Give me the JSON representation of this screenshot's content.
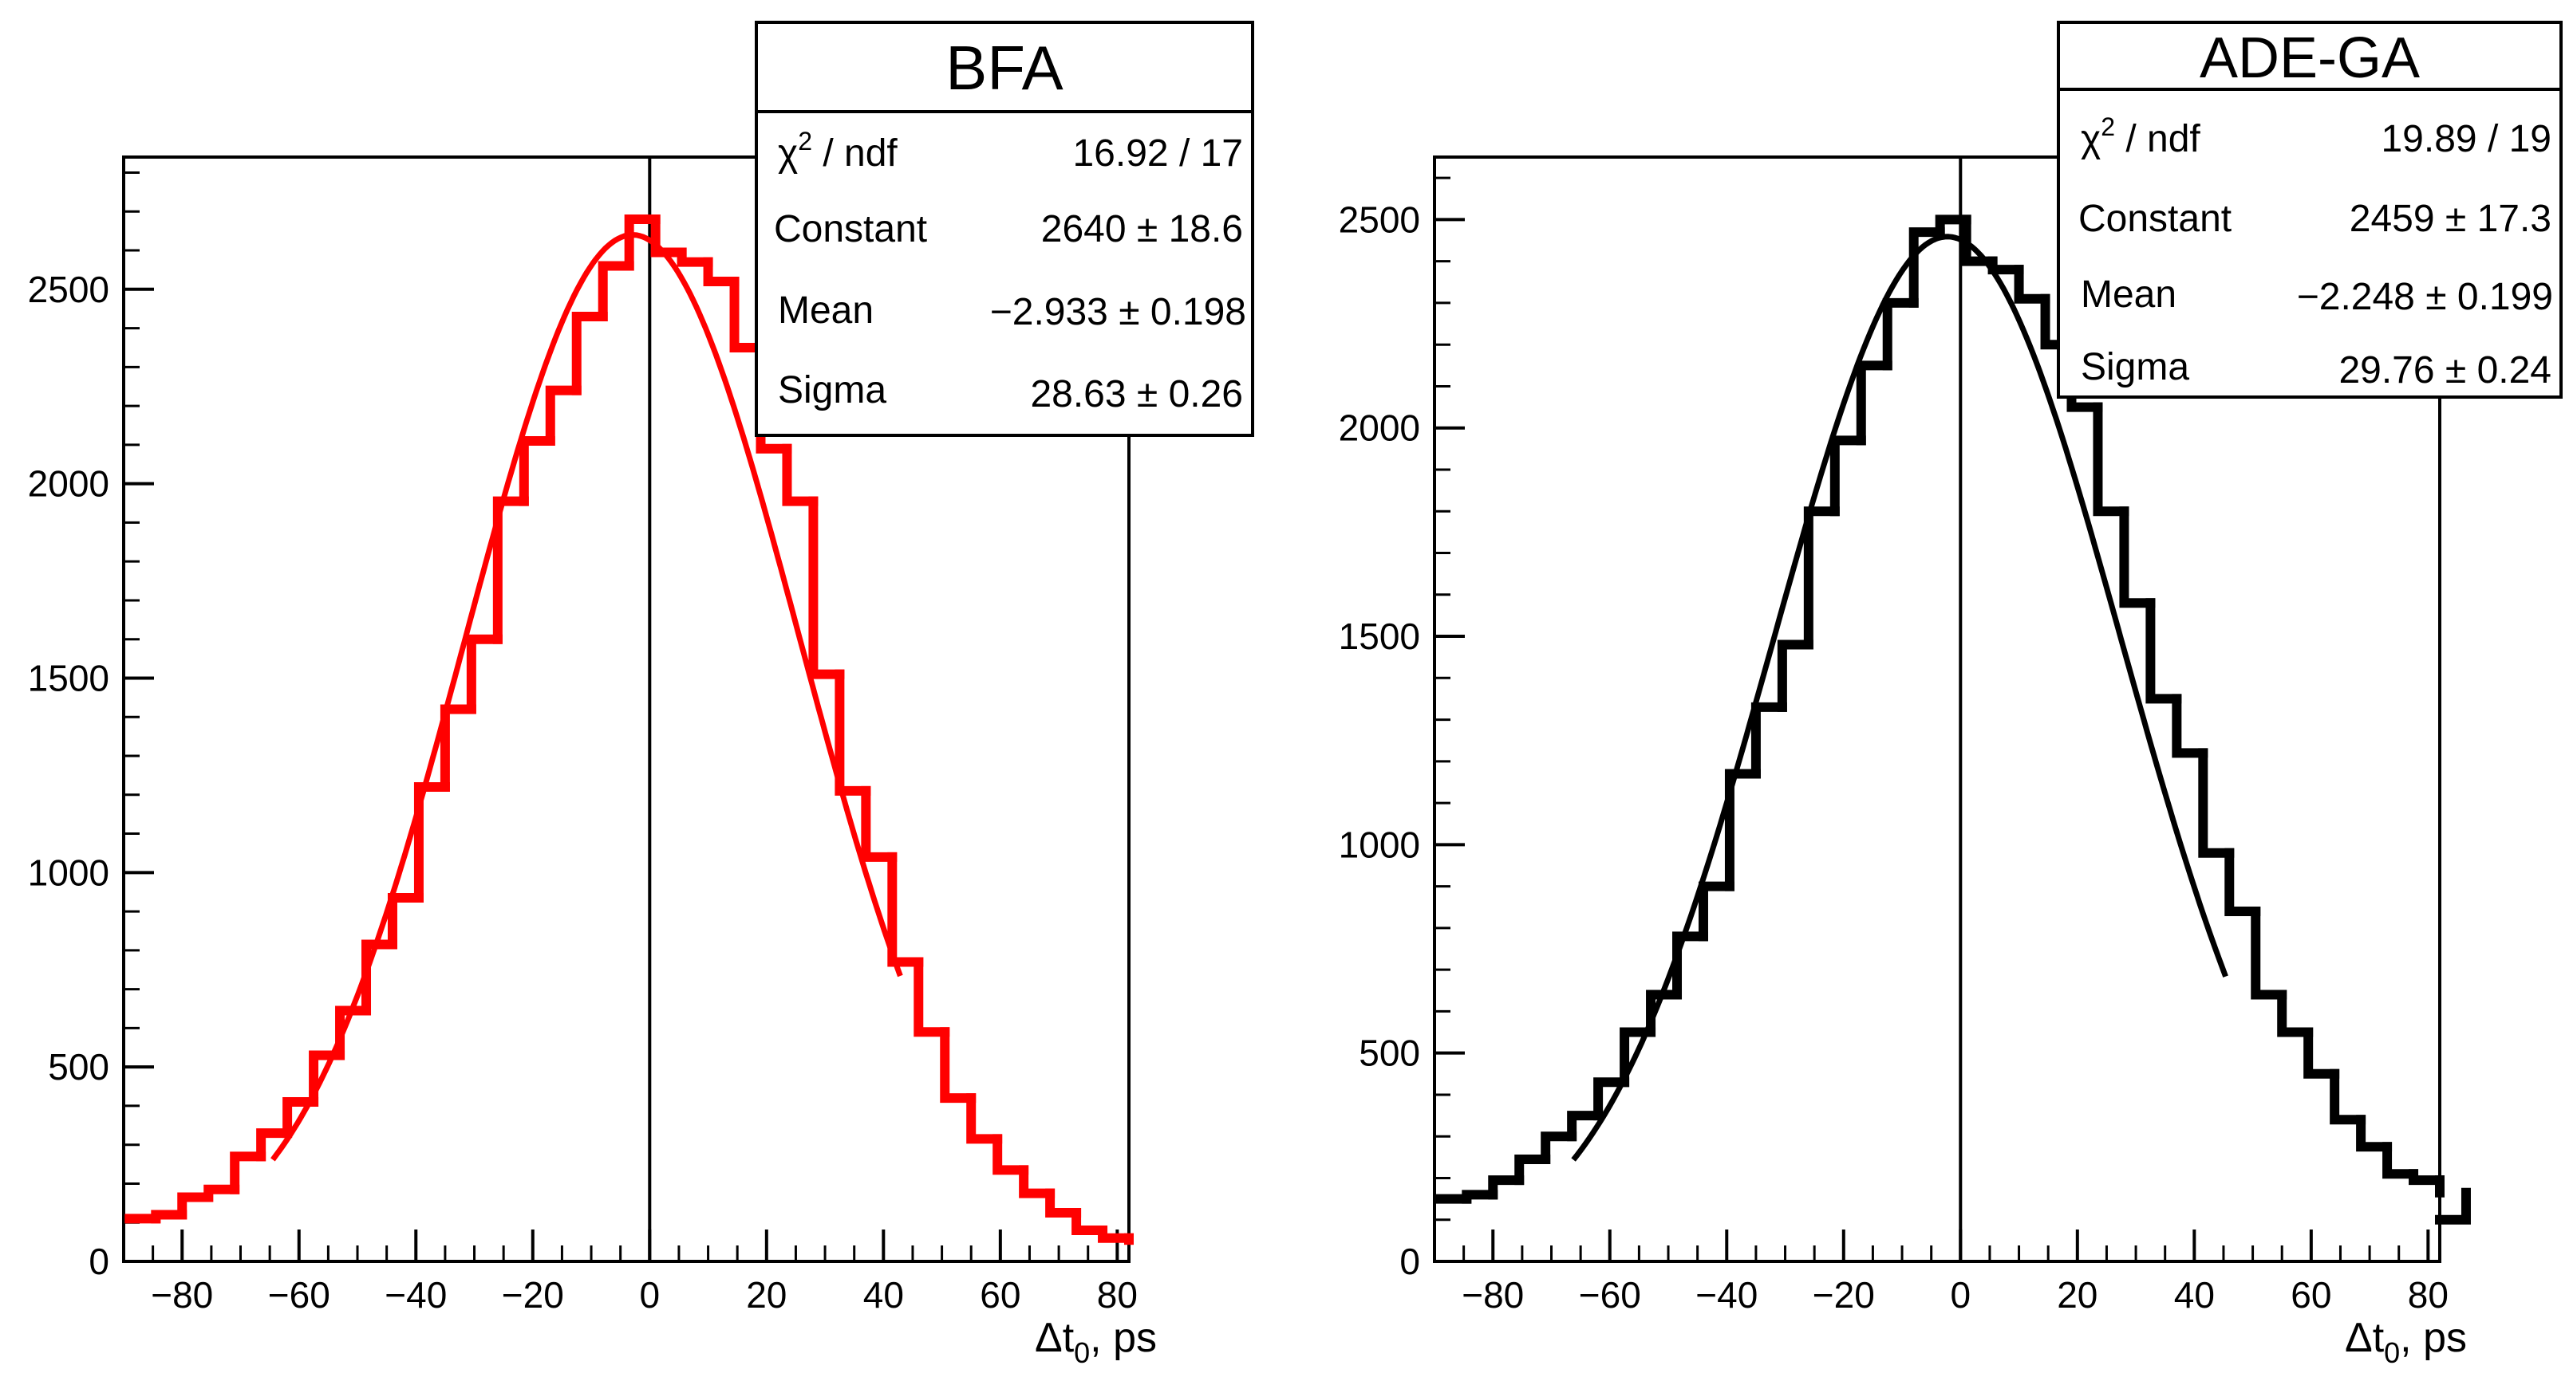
{
  "chart_data": [
    {
      "type": "bar",
      "histogram": true,
      "title": "BFA",
      "color": "#ff0000",
      "xlabel": "Δt",
      "xlabel_sub": "0",
      "xlabel_unit": ", ps",
      "xlim": [
        -90,
        82
      ],
      "ylim": [
        0,
        2840
      ],
      "xticks": [
        -80,
        -60,
        -40,
        -20,
        0,
        20,
        40,
        60,
        80
      ],
      "xtick_labels": [
        "−80",
        "−60",
        "−40",
        "−20",
        "0",
        "20",
        "40",
        "60",
        "80"
      ],
      "yticks": [
        0,
        500,
        1000,
        1500,
        2000,
        2500
      ],
      "ytick_labels": [
        "0",
        "500",
        "1000",
        "1500",
        "2000",
        "2500"
      ],
      "bin_width": 4.5,
      "bin_start": -89,
      "values": [
        110,
        120,
        165,
        185,
        270,
        330,
        410,
        530,
        645,
        815,
        935,
        1220,
        1420,
        1600,
        1955,
        2110,
        2240,
        2430,
        2560,
        2680,
        2595,
        2570,
        2520,
        2350,
        2090,
        1955,
        1510,
        1210,
        1040,
        770,
        590,
        420,
        315,
        235,
        175,
        125,
        80,
        60,
        55
      ],
      "fit": {
        "constant": 2640,
        "mean": -2.933,
        "sigma": 28.63
      },
      "stats": {
        "chi_label": "χ",
        "chi_sup": "2",
        "chi_rest": " / ndf",
        "chi_value": "16.92 / 17",
        "constant_label": "Constant",
        "constant_value": "2640 ± 18.6",
        "mean_label": "Mean",
        "mean_value": "−2.933 ± 0.198",
        "sigma_label": "Sigma",
        "sigma_value": "28.63 ± 0.26"
      }
    },
    {
      "type": "bar",
      "histogram": true,
      "title": "ADE-GA",
      "color": "#000000",
      "xlabel": "Δt",
      "xlabel_sub": "0",
      "xlabel_unit": ", ps",
      "xlim": [
        -90,
        82
      ],
      "ylim": [
        0,
        2650
      ],
      "xticks": [
        -80,
        -60,
        -40,
        -20,
        0,
        20,
        40,
        60,
        80
      ],
      "xtick_labels": [
        "−80",
        "−60",
        "−40",
        "−20",
        "0",
        "20",
        "40",
        "60",
        "80"
      ],
      "yticks": [
        0,
        500,
        1000,
        1500,
        2000,
        2500
      ],
      "ytick_labels": [
        "0",
        "500",
        "1000",
        "1500",
        "2000",
        "2500"
      ],
      "bin_width": 4.5,
      "bin_start": -89,
      "values": [
        150,
        160,
        195,
        245,
        300,
        350,
        430,
        550,
        640,
        780,
        900,
        1170,
        1330,
        1480,
        1800,
        1970,
        2150,
        2300,
        2470,
        2500,
        2400,
        2380,
        2310,
        2200,
        2050,
        1800,
        1580,
        1350,
        1220,
        980,
        840,
        640,
        550,
        450,
        340,
        275,
        210,
        195,
        165,
        100
      ],
      "fit": {
        "constant": 2459,
        "mean": -2.248,
        "sigma": 29.76
      },
      "stats": {
        "chi_label": "χ",
        "chi_sup": "2",
        "chi_rest": " / ndf",
        "chi_value": "19.89 / 19",
        "constant_label": "Constant",
        "constant_value": "2459 ± 17.3",
        "mean_label": "Mean",
        "mean_value": "−2.248 ± 0.199",
        "sigma_label": "Sigma",
        "sigma_value": "29.76 ± 0.24"
      }
    }
  ]
}
